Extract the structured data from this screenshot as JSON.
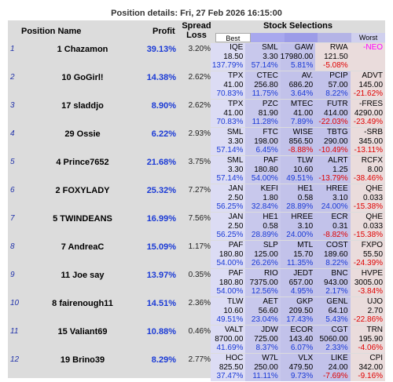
{
  "title": "Position details: Fri, 27 Feb 2026 16:15:00",
  "headers": {
    "position_name": "Position Name",
    "profit": "Profit",
    "spread_loss": "Spread Loss",
    "stock_selections": "Stock Selections",
    "best": "Best",
    "worst": "Worst"
  },
  "colors": {
    "cell_shades": [
      "#d8d8f0",
      "#c8c8ec",
      "#c2c2ea",
      "#c2c2ea",
      "#f4dede"
    ],
    "positive": "#1a3ad6",
    "negative": "#e00000"
  },
  "rows": [
    {
      "index": "1",
      "name": "1 Chazamon",
      "profit": "39.13%",
      "spread": "3.20%",
      "stocks": [
        {
          "ticker": "IQE",
          "price": "18.50",
          "pct": "137.79%",
          "neg": false
        },
        {
          "ticker": "SML",
          "price": "3.30",
          "pct": "57.14%",
          "neg": false
        },
        {
          "ticker": "GAW",
          "price": "17980.00",
          "pct": "5.81%",
          "neg": false
        },
        {
          "ticker": "RWA",
          "price": "121.50",
          "pct": "-5.08%",
          "neg": true
        },
        {
          "ticker": "-NEO",
          "price": "",
          "pct": "",
          "neg": true,
          "neo": true
        }
      ]
    },
    {
      "index": "2",
      "name": "10 GoGirl!",
      "profit": "14.38%",
      "spread": "2.62%",
      "stocks": [
        {
          "ticker": "TPX",
          "price": "41.00",
          "pct": "70.83%",
          "neg": false
        },
        {
          "ticker": "CTEC",
          "price": "256.80",
          "pct": "11.75%",
          "neg": false
        },
        {
          "ticker": "AV.",
          "price": "686.20",
          "pct": "3.64%",
          "neg": false
        },
        {
          "ticker": "PCIP",
          "price": "57.00",
          "pct": "8.22%",
          "neg": false
        },
        {
          "ticker": "ADVT",
          "price": "145.00",
          "pct": "-21.62%",
          "neg": true
        }
      ]
    },
    {
      "index": "3",
      "name": "17 sladdjo",
      "profit": "8.90%",
      "spread": "2.62%",
      "stocks": [
        {
          "ticker": "TPX",
          "price": "41.00",
          "pct": "70.83%",
          "neg": false
        },
        {
          "ticker": "PZC",
          "price": "81.90",
          "pct": "11.28%",
          "neg": false
        },
        {
          "ticker": "MTEC",
          "price": "41.00",
          "pct": "7.89%",
          "neg": false
        },
        {
          "ticker": "FUTR",
          "price": "414.00",
          "pct": "-22.03%",
          "neg": true
        },
        {
          "ticker": "-FRES",
          "price": "4290.00",
          "pct": "-23.49%",
          "neg": true
        }
      ]
    },
    {
      "index": "4",
      "name": "29 Ossie",
      "profit": "6.22%",
      "spread": "2.93%",
      "stocks": [
        {
          "ticker": "SML",
          "price": "3.30",
          "pct": "57.14%",
          "neg": false
        },
        {
          "ticker": "FTC",
          "price": "198.00",
          "pct": "6.45%",
          "neg": false
        },
        {
          "ticker": "WISE",
          "price": "856.50",
          "pct": "-8.88%",
          "neg": true
        },
        {
          "ticker": "TBTG",
          "price": "290.00",
          "pct": "-10.49%",
          "neg": true
        },
        {
          "ticker": "-SRB",
          "price": "345.00",
          "pct": "-13.11%",
          "neg": true
        }
      ]
    },
    {
      "index": "5",
      "name": "4 Prince7652",
      "profit": "21.68%",
      "spread": "3.75%",
      "stocks": [
        {
          "ticker": "SML",
          "price": "3.30",
          "pct": "57.14%",
          "neg": false
        },
        {
          "ticker": "PAF",
          "price": "180.80",
          "pct": "54.00%",
          "neg": false
        },
        {
          "ticker": "TLW",
          "price": "10.60",
          "pct": "49.51%",
          "neg": false
        },
        {
          "ticker": "ALRT",
          "price": "1.25",
          "pct": "-13.79%",
          "neg": true
        },
        {
          "ticker": "RCFX",
          "price": "8.00",
          "pct": "-38.46%",
          "neg": true
        }
      ]
    },
    {
      "index": "6",
      "name": "2 FOXYLADY",
      "profit": "25.32%",
      "spread": "7.27%",
      "stocks": [
        {
          "ticker": "JAN",
          "price": "2.50",
          "pct": "56.25%",
          "neg": false
        },
        {
          "ticker": "KEFI",
          "price": "1.80",
          "pct": "32.84%",
          "neg": false
        },
        {
          "ticker": "HE1",
          "price": "0.58",
          "pct": "28.89%",
          "neg": false
        },
        {
          "ticker": "HREE",
          "price": "3.10",
          "pct": "24.00%",
          "neg": false
        },
        {
          "ticker": "QHE",
          "price": "0.033",
          "pct": "-15.38%",
          "neg": true
        }
      ]
    },
    {
      "index": "7",
      "name": "5 TWINDEANS",
      "profit": "16.99%",
      "spread": "7.56%",
      "stocks": [
        {
          "ticker": "JAN",
          "price": "2.50",
          "pct": "56.25%",
          "neg": false
        },
        {
          "ticker": "HE1",
          "price": "0.58",
          "pct": "28.89%",
          "neg": false
        },
        {
          "ticker": "HREE",
          "price": "3.10",
          "pct": "24.00%",
          "neg": false
        },
        {
          "ticker": "ECR",
          "price": "0.31",
          "pct": "-8.82%",
          "neg": true
        },
        {
          "ticker": "QHE",
          "price": "0.033",
          "pct": "-15.38%",
          "neg": true
        }
      ]
    },
    {
      "index": "8",
      "name": "7 AndreaC",
      "profit": "15.09%",
      "spread": "1.17%",
      "stocks": [
        {
          "ticker": "PAF",
          "price": "180.80",
          "pct": "54.00%",
          "neg": false
        },
        {
          "ticker": "SLP",
          "price": "125.00",
          "pct": "26.26%",
          "neg": false
        },
        {
          "ticker": "MTL",
          "price": "15.70",
          "pct": "11.35%",
          "neg": false
        },
        {
          "ticker": "COST",
          "price": "189.60",
          "pct": "8.22%",
          "neg": false
        },
        {
          "ticker": "FXPO",
          "price": "55.50",
          "pct": "-24.39%",
          "neg": true
        }
      ]
    },
    {
      "index": "9",
      "name": "11 Joe say",
      "profit": "13.97%",
      "spread": "0.35%",
      "stocks": [
        {
          "ticker": "PAF",
          "price": "180.80",
          "pct": "54.00%",
          "neg": false
        },
        {
          "ticker": "RIO",
          "price": "7375.00",
          "pct": "12.56%",
          "neg": false
        },
        {
          "ticker": "JEDT",
          "price": "657.00",
          "pct": "4.95%",
          "neg": false
        },
        {
          "ticker": "BNC",
          "price": "943.00",
          "pct": "2.17%",
          "neg": false
        },
        {
          "ticker": "HVPE",
          "price": "3005.00",
          "pct": "-3.84%",
          "neg": true
        }
      ]
    },
    {
      "index": "10",
      "name": "8 fairenough11",
      "profit": "14.51%",
      "spread": "2.36%",
      "stocks": [
        {
          "ticker": "TLW",
          "price": "10.60",
          "pct": "49.51%",
          "neg": false
        },
        {
          "ticker": "AET",
          "price": "56.60",
          "pct": "23.04%",
          "neg": false
        },
        {
          "ticker": "GKP",
          "price": "209.50",
          "pct": "17.43%",
          "neg": false
        },
        {
          "ticker": "GENL",
          "price": "64.10",
          "pct": "5.43%",
          "neg": false
        },
        {
          "ticker": "UJO",
          "price": "2.70",
          "pct": "-22.86%",
          "neg": true
        }
      ]
    },
    {
      "index": "11",
      "name": "15 Valiant69",
      "profit": "10.88%",
      "spread": "0.46%",
      "stocks": [
        {
          "ticker": "VALT",
          "price": "8700.00",
          "pct": "41.69%",
          "neg": false
        },
        {
          "ticker": "JDW",
          "price": "725.00",
          "pct": "8.37%",
          "neg": false
        },
        {
          "ticker": "ECOR",
          "price": "143.40",
          "pct": "6.07%",
          "neg": false
        },
        {
          "ticker": "CGT",
          "price": "5060.00",
          "pct": "2.33%",
          "neg": false
        },
        {
          "ticker": "TRN",
          "price": "195.90",
          "pct": "-4.06%",
          "neg": true
        }
      ]
    },
    {
      "index": "12",
      "name": "19 Brino39",
      "profit": "8.29%",
      "spread": "2.77%",
      "stocks": [
        {
          "ticker": "HOC",
          "price": "825.50",
          "pct": "37.47%",
          "neg": false
        },
        {
          "ticker": "W7L",
          "price": "250.00",
          "pct": "11.11%",
          "neg": false
        },
        {
          "ticker": "VLX",
          "price": "479.50",
          "pct": "9.73%",
          "neg": false
        },
        {
          "ticker": "LIKE",
          "price": "24.00",
          "pct": "-7.69%",
          "neg": true
        },
        {
          "ticker": "CPI",
          "price": "342.00",
          "pct": "-9.16%",
          "neg": true
        }
      ]
    }
  ]
}
